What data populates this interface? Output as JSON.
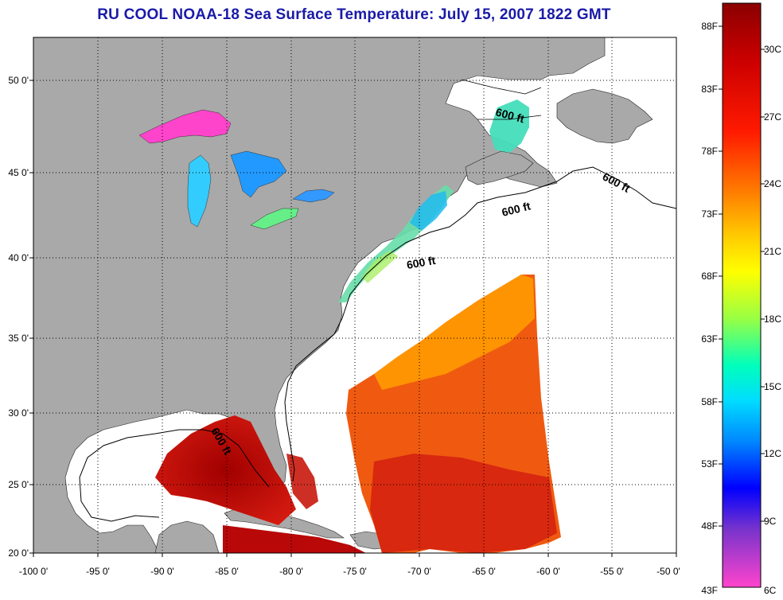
{
  "title": "RU COOL  NOAA-18  Sea Surface Temperature:  July 15, 2007 1822 GMT",
  "map": {
    "lon_range": [
      -100,
      -50
    ],
    "lat_range": [
      20,
      52.5
    ],
    "lon_ticks": [
      "-100 0'",
      "-95 0'",
      "-90 0'",
      "-85 0'",
      "-80 0'",
      "-75 0'",
      "-70 0'",
      "-65 0'",
      "-60 0'",
      "-55 0'",
      "-50 0'"
    ],
    "lat_ticks": [
      "20 0'",
      "25 0'",
      "30 0'",
      "35 0'",
      "40 0'",
      "45 0'",
      "50 0'"
    ],
    "grid": "dotted",
    "land_color": "#a9a9a9",
    "ocean_color": "#ffffff",
    "contour_labels": [
      "600 ft",
      "600 ft",
      "600 ft",
      "600 ft",
      "600 ft"
    ]
  },
  "colorbar": {
    "fahrenheit_labels": [
      "88F",
      "83F",
      "78F",
      "73F",
      "68F",
      "63F",
      "58F",
      "53F",
      "48F",
      "43F"
    ],
    "celsius_labels": [
      "30C",
      "27C",
      "24C",
      "21C",
      "18C",
      "15C",
      "12C",
      "9C",
      "6C"
    ],
    "colors_top_to_bottom": [
      "#8b0000",
      "#cc0000",
      "#ff0000",
      "#ff6a00",
      "#ffaa00",
      "#ffff00",
      "#88ff44",
      "#00ffcc",
      "#00ccff",
      "#0066ff",
      "#0000ff",
      "#8844cc",
      "#ff44cc"
    ]
  }
}
